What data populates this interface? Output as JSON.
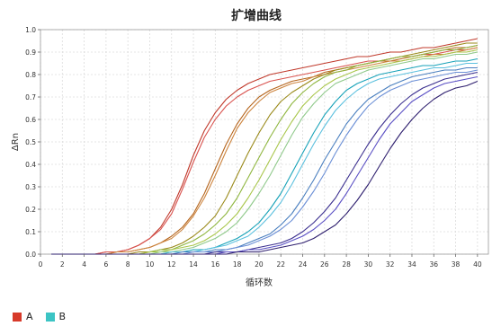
{
  "chart_data": {
    "type": "line",
    "title": "扩增曲线",
    "xlabel": "循环数",
    "ylabel": "ΔRn",
    "xlim": [
      0,
      41
    ],
    "ylim": [
      0,
      1.0
    ],
    "xticks": [
      "0",
      "2",
      "4",
      "6",
      "8",
      "10",
      "12",
      "14",
      "16",
      "18",
      "20",
      "22",
      "24",
      "26",
      "28",
      "30",
      "32",
      "34",
      "36",
      "38",
      "40"
    ],
    "yticks": [
      "0.0",
      "0.1",
      "0.2",
      "0.3",
      "0.4",
      "0.5",
      "0.6",
      "0.7",
      "0.8",
      "0.9",
      "1.0"
    ],
    "grid": true,
    "x": [
      1,
      2,
      3,
      4,
      5,
      6,
      7,
      8,
      9,
      10,
      11,
      12,
      13,
      14,
      15,
      16,
      17,
      18,
      19,
      20,
      21,
      22,
      23,
      24,
      25,
      26,
      27,
      28,
      29,
      30,
      31,
      32,
      33,
      34,
      35,
      36,
      37,
      38,
      39,
      40
    ],
    "series": [
      {
        "color": "#c0392b",
        "values": [
          0.0,
          0.0,
          0.0,
          0.0,
          0.0,
          0.01,
          0.01,
          0.02,
          0.04,
          0.07,
          0.12,
          0.2,
          0.31,
          0.44,
          0.55,
          0.63,
          0.69,
          0.73,
          0.76,
          0.78,
          0.8,
          0.81,
          0.82,
          0.83,
          0.84,
          0.85,
          0.86,
          0.87,
          0.88,
          0.88,
          0.89,
          0.9,
          0.9,
          0.91,
          0.92,
          0.92,
          0.93,
          0.94,
          0.95,
          0.96
        ]
      },
      {
        "color": "#d9534f",
        "values": [
          0.0,
          0.0,
          0.0,
          0.0,
          0.0,
          0.01,
          0.01,
          0.02,
          0.04,
          0.07,
          0.11,
          0.18,
          0.29,
          0.41,
          0.52,
          0.6,
          0.66,
          0.7,
          0.73,
          0.75,
          0.77,
          0.78,
          0.79,
          0.8,
          0.81,
          0.82,
          0.83,
          0.84,
          0.85,
          0.86,
          0.86,
          0.87,
          0.88,
          0.88,
          0.89,
          0.89,
          0.9,
          0.91,
          0.91,
          0.92
        ]
      },
      {
        "color": "#b5651d",
        "values": [
          0.0,
          0.0,
          0.0,
          0.0,
          0.0,
          0.0,
          0.01,
          0.01,
          0.02,
          0.03,
          0.05,
          0.08,
          0.12,
          0.18,
          0.27,
          0.38,
          0.49,
          0.58,
          0.65,
          0.7,
          0.73,
          0.75,
          0.77,
          0.78,
          0.79,
          0.81,
          0.82,
          0.83,
          0.84,
          0.85,
          0.86,
          0.86,
          0.87,
          0.88,
          0.89,
          0.9,
          0.91,
          0.92,
          0.92,
          0.93
        ]
      },
      {
        "color": "#cd853f",
        "values": [
          0.0,
          0.0,
          0.0,
          0.0,
          0.0,
          0.0,
          0.01,
          0.01,
          0.02,
          0.03,
          0.05,
          0.07,
          0.11,
          0.17,
          0.25,
          0.35,
          0.46,
          0.56,
          0.63,
          0.68,
          0.72,
          0.74,
          0.76,
          0.77,
          0.79,
          0.8,
          0.81,
          0.82,
          0.83,
          0.84,
          0.85,
          0.86,
          0.86,
          0.87,
          0.88,
          0.89,
          0.89,
          0.9,
          0.91,
          0.92
        ]
      },
      {
        "color": "#9a8a1a",
        "values": [
          0.0,
          0.0,
          0.0,
          0.0,
          0.0,
          0.0,
          0.0,
          0.0,
          0.01,
          0.01,
          0.02,
          0.03,
          0.05,
          0.08,
          0.12,
          0.17,
          0.25,
          0.35,
          0.45,
          0.54,
          0.62,
          0.68,
          0.72,
          0.75,
          0.78,
          0.8,
          0.82,
          0.83,
          0.84,
          0.85,
          0.86,
          0.87,
          0.88,
          0.89,
          0.9,
          0.91,
          0.92,
          0.93,
          0.94,
          0.94
        ]
      },
      {
        "color": "#8fb63f",
        "values": [
          0.0,
          0.0,
          0.0,
          0.0,
          0.0,
          0.0,
          0.0,
          0.0,
          0.0,
          0.01,
          0.02,
          0.02,
          0.04,
          0.06,
          0.09,
          0.13,
          0.18,
          0.25,
          0.34,
          0.43,
          0.52,
          0.6,
          0.67,
          0.72,
          0.76,
          0.79,
          0.81,
          0.82,
          0.84,
          0.85,
          0.86,
          0.87,
          0.88,
          0.88,
          0.89,
          0.9,
          0.91,
          0.91,
          0.92,
          0.93
        ]
      },
      {
        "color": "#a8c64a",
        "values": [
          0.0,
          0.0,
          0.0,
          0.0,
          0.0,
          0.0,
          0.0,
          0.0,
          0.0,
          0.01,
          0.01,
          0.02,
          0.03,
          0.04,
          0.06,
          0.09,
          0.13,
          0.18,
          0.25,
          0.33,
          0.42,
          0.51,
          0.59,
          0.66,
          0.71,
          0.75,
          0.78,
          0.8,
          0.82,
          0.83,
          0.84,
          0.85,
          0.86,
          0.87,
          0.88,
          0.88,
          0.89,
          0.9,
          0.9,
          0.91
        ]
      },
      {
        "color": "#8fc98a",
        "values": [
          0.0,
          0.0,
          0.0,
          0.0,
          0.0,
          0.0,
          0.0,
          0.0,
          0.0,
          0.0,
          0.01,
          0.01,
          0.02,
          0.03,
          0.05,
          0.07,
          0.1,
          0.14,
          0.2,
          0.27,
          0.35,
          0.44,
          0.53,
          0.61,
          0.67,
          0.72,
          0.76,
          0.78,
          0.8,
          0.82,
          0.83,
          0.84,
          0.85,
          0.86,
          0.87,
          0.87,
          0.88,
          0.89,
          0.89,
          0.9
        ]
      },
      {
        "color": "#17a2b8",
        "values": [
          0.0,
          0.0,
          0.0,
          0.0,
          0.0,
          0.0,
          0.0,
          0.0,
          0.0,
          0.0,
          0.0,
          0.01,
          0.01,
          0.02,
          0.02,
          0.03,
          0.05,
          0.07,
          0.1,
          0.14,
          0.2,
          0.27,
          0.36,
          0.45,
          0.54,
          0.62,
          0.68,
          0.73,
          0.76,
          0.78,
          0.8,
          0.81,
          0.82,
          0.83,
          0.84,
          0.84,
          0.85,
          0.86,
          0.86,
          0.87
        ]
      },
      {
        "color": "#5bc0de",
        "values": [
          0.0,
          0.0,
          0.0,
          0.0,
          0.0,
          0.0,
          0.0,
          0.0,
          0.0,
          0.0,
          0.0,
          0.01,
          0.01,
          0.01,
          0.02,
          0.03,
          0.04,
          0.06,
          0.08,
          0.12,
          0.17,
          0.23,
          0.31,
          0.4,
          0.49,
          0.57,
          0.64,
          0.69,
          0.73,
          0.76,
          0.78,
          0.79,
          0.8,
          0.81,
          0.82,
          0.83,
          0.83,
          0.84,
          0.85,
          0.85
        ]
      },
      {
        "color": "#4a7fbf",
        "values": [
          0.0,
          0.0,
          0.0,
          0.0,
          0.0,
          0.0,
          0.0,
          0.0,
          0.0,
          0.0,
          0.0,
          0.0,
          0.01,
          0.01,
          0.01,
          0.02,
          0.02,
          0.03,
          0.05,
          0.07,
          0.09,
          0.13,
          0.18,
          0.25,
          0.33,
          0.42,
          0.5,
          0.58,
          0.64,
          0.69,
          0.72,
          0.75,
          0.77,
          0.79,
          0.8,
          0.81,
          0.82,
          0.82,
          0.83,
          0.83
        ]
      },
      {
        "color": "#6b8fd6",
        "values": [
          0.0,
          0.0,
          0.0,
          0.0,
          0.0,
          0.0,
          0.0,
          0.0,
          0.0,
          0.0,
          0.0,
          0.0,
          0.0,
          0.01,
          0.01,
          0.01,
          0.02,
          0.03,
          0.04,
          0.06,
          0.08,
          0.11,
          0.15,
          0.21,
          0.28,
          0.36,
          0.45,
          0.53,
          0.6,
          0.66,
          0.7,
          0.73,
          0.75,
          0.77,
          0.78,
          0.79,
          0.8,
          0.81,
          0.81,
          0.82
        ]
      },
      {
        "color": "#3b2f8f",
        "values": [
          0.0,
          0.0,
          0.0,
          0.0,
          0.0,
          0.0,
          0.0,
          0.0,
          0.0,
          0.0,
          0.0,
          0.0,
          0.0,
          0.0,
          0.0,
          0.01,
          0.01,
          0.01,
          0.02,
          0.03,
          0.04,
          0.05,
          0.07,
          0.1,
          0.14,
          0.19,
          0.25,
          0.33,
          0.41,
          0.49,
          0.56,
          0.62,
          0.67,
          0.71,
          0.74,
          0.76,
          0.78,
          0.79,
          0.8,
          0.81
        ]
      },
      {
        "color": "#5a4fc4",
        "values": [
          0.0,
          0.0,
          0.0,
          0.0,
          0.0,
          0.0,
          0.0,
          0.0,
          0.0,
          0.0,
          0.0,
          0.0,
          0.0,
          0.0,
          0.0,
          0.0,
          0.01,
          0.01,
          0.02,
          0.02,
          0.03,
          0.04,
          0.06,
          0.08,
          0.11,
          0.15,
          0.2,
          0.27,
          0.35,
          0.43,
          0.51,
          0.58,
          0.63,
          0.68,
          0.71,
          0.74,
          0.76,
          0.77,
          0.78,
          0.79
        ]
      },
      {
        "color": "#2e1f6e",
        "values": [
          0.0,
          0.0,
          0.0,
          0.0,
          0.0,
          0.0,
          0.0,
          0.0,
          0.0,
          0.0,
          0.0,
          0.0,
          0.0,
          0.0,
          0.0,
          0.0,
          0.0,
          0.01,
          0.01,
          0.01,
          0.02,
          0.03,
          0.04,
          0.05,
          0.07,
          0.1,
          0.13,
          0.18,
          0.24,
          0.31,
          0.39,
          0.47,
          0.54,
          0.6,
          0.65,
          0.69,
          0.72,
          0.74,
          0.75,
          0.77
        ]
      }
    ],
    "legend": [
      {
        "label": "A",
        "color": "#d73a2a"
      },
      {
        "label": "B",
        "color": "#3cc4c4"
      }
    ]
  }
}
